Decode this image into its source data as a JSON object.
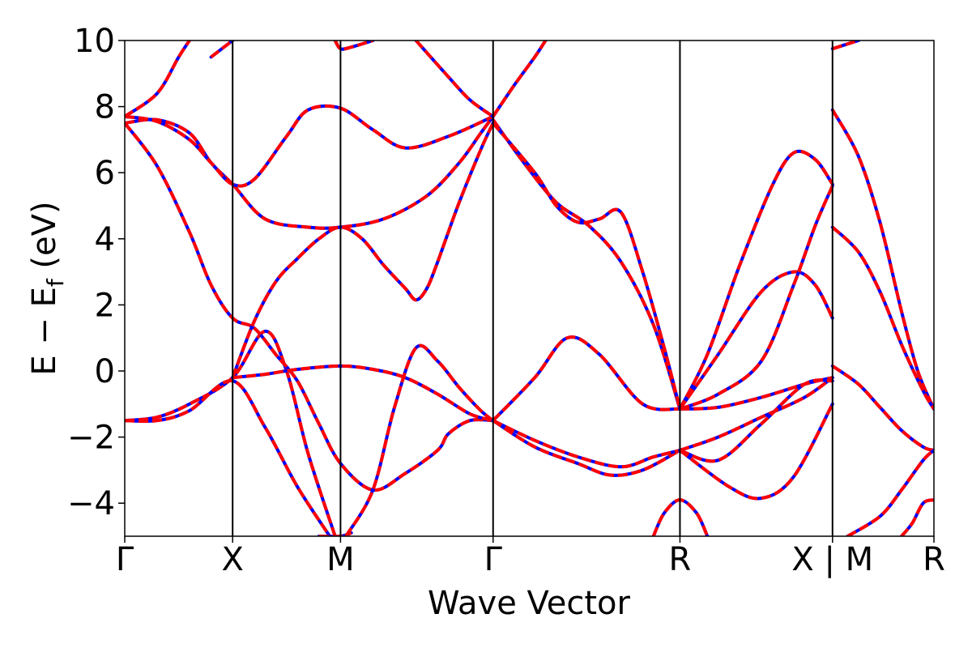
{
  "chart_data": {
    "type": "line",
    "title": "",
    "xlabel": "Wave Vector",
    "ylabel": "E − E_f (eV)",
    "ylabel_parts": {
      "main": "E − E",
      "sub": "f",
      "unit": " (eV)"
    },
    "ylim": [
      -5,
      10
    ],
    "yticks": [
      -4,
      -2,
      0,
      2,
      4,
      6,
      8,
      10
    ],
    "ytick_labels": [
      "−4",
      "−2",
      "0",
      "2",
      "4",
      "6",
      "8",
      "10"
    ],
    "xlim": [
      0,
      7.5
    ],
    "high_symmetry_points": [
      {
        "label": "Γ",
        "x": 0
      },
      {
        "label": "X",
        "x": 1.0
      },
      {
        "label": "M",
        "x": 2.0
      },
      {
        "label": "Γ",
        "x": 3.414
      },
      {
        "label": "R",
        "x": 5.146
      },
      {
        "label": "X | M",
        "x": 6.56
      },
      {
        "label": "R",
        "x": 7.5
      }
    ],
    "grid": false,
    "legend": "none",
    "colors": {
      "band_solid": "#0000ff",
      "band_dashed": "#ff0000",
      "kline": "#000000"
    },
    "series": [
      {
        "points": [
          [
            0,
            -1.5
          ],
          [
            0.3,
            -1.4
          ],
          [
            0.6,
            -1.0
          ],
          [
            1.0,
            -0.2
          ],
          [
            1.3,
            1.2
          ],
          [
            1.5,
            0.0
          ],
          [
            1.7,
            -2.5
          ],
          [
            1.95,
            -5.0
          ]
        ]
      },
      {
        "points": [
          [
            0,
            -1.5
          ],
          [
            0.3,
            -1.5
          ],
          [
            0.6,
            -1.2
          ],
          [
            1.0,
            -0.3
          ],
          [
            1.3,
            -1.7
          ],
          [
            1.6,
            -3.5
          ],
          [
            1.9,
            -5.0
          ]
        ]
      },
      {
        "points": [
          [
            0,
            7.5
          ],
          [
            0.3,
            6.2
          ],
          [
            0.6,
            4.2
          ],
          [
            0.8,
            2.6
          ],
          [
            1.0,
            1.6
          ],
          [
            1.2,
            1.3
          ],
          [
            1.4,
            0.5
          ],
          [
            1.6,
            -0.3
          ],
          [
            1.8,
            -1.6
          ],
          [
            2.0,
            -2.8
          ],
          [
            2.3,
            -3.6
          ],
          [
            2.6,
            -3.1
          ],
          [
            2.9,
            -2.4
          ],
          [
            3.0,
            -1.9
          ],
          [
            3.2,
            -1.5
          ],
          [
            3.414,
            -1.5
          ]
        ]
      },
      {
        "points": [
          [
            0,
            7.5
          ],
          [
            0.3,
            7.6
          ],
          [
            0.6,
            7.2
          ],
          [
            0.8,
            6.3
          ],
          [
            1.0,
            5.65
          ],
          [
            1.3,
            4.6
          ],
          [
            1.7,
            4.35
          ],
          [
            2.0,
            4.35
          ],
          [
            2.4,
            4.6
          ],
          [
            2.8,
            5.3
          ],
          [
            3.1,
            6.3
          ],
          [
            3.3,
            7.2
          ],
          [
            3.414,
            7.7
          ]
        ]
      },
      {
        "points": [
          [
            0,
            7.7
          ],
          [
            0.3,
            7.55
          ],
          [
            0.6,
            7.0
          ],
          [
            0.8,
            6.3
          ],
          [
            1.0,
            5.65
          ],
          [
            1.2,
            5.8
          ],
          [
            1.5,
            7.1
          ],
          [
            1.7,
            7.9
          ],
          [
            2.0,
            7.95
          ],
          [
            2.3,
            7.3
          ],
          [
            2.6,
            6.75
          ],
          [
            3.0,
            7.1
          ],
          [
            3.414,
            7.7
          ]
        ]
      },
      {
        "points": [
          [
            0,
            7.7
          ],
          [
            0.3,
            8.4
          ],
          [
            0.5,
            9.5
          ],
          [
            0.6,
            10.0
          ]
        ]
      },
      {
        "points": [
          [
            0.8,
            9.5
          ],
          [
            1.0,
            10.0
          ]
        ]
      },
      {
        "points": [
          [
            1.0,
            -0.2
          ],
          [
            1.2,
            1.5
          ],
          [
            1.4,
            2.7
          ],
          [
            1.6,
            3.4
          ],
          [
            1.8,
            4.0
          ],
          [
            2.0,
            4.35
          ],
          [
            2.2,
            4.0
          ],
          [
            2.4,
            3.2
          ],
          [
            2.6,
            2.5
          ],
          [
            2.7,
            2.15
          ],
          [
            2.8,
            2.5
          ],
          [
            2.9,
            3.3
          ],
          [
            3.1,
            5.1
          ],
          [
            3.3,
            6.7
          ],
          [
            3.414,
            7.5
          ]
        ]
      },
      {
        "points": [
          [
            1.0,
            -0.2
          ],
          [
            1.3,
            -0.1
          ],
          [
            1.6,
            0.05
          ],
          [
            2.0,
            0.15
          ],
          [
            2.3,
            0.05
          ],
          [
            2.6,
            -0.2
          ],
          [
            2.9,
            -0.7
          ],
          [
            3.2,
            -1.3
          ],
          [
            3.414,
            -1.5
          ]
        ]
      },
      {
        "points": [
          [
            1.8,
            -5.0
          ],
          [
            2.0,
            -5.0
          ],
          [
            2.1,
            -4.9
          ]
        ]
      },
      {
        "points": [
          [
            2.05,
            -5.0
          ],
          [
            2.3,
            -3.6
          ],
          [
            2.5,
            -1.1
          ],
          [
            2.7,
            0.7
          ],
          [
            2.9,
            0.3
          ],
          [
            3.1,
            -0.5
          ],
          [
            3.3,
            -1.2
          ],
          [
            3.414,
            -1.5
          ]
        ]
      },
      {
        "points": [
          [
            1.95,
            10.0
          ],
          [
            2.0,
            9.75
          ],
          [
            2.1,
            9.8
          ],
          [
            2.3,
            10.0
          ]
        ]
      },
      {
        "points": [
          [
            2.7,
            10.0
          ],
          [
            3.0,
            8.9
          ],
          [
            3.2,
            8.2
          ],
          [
            3.414,
            7.7
          ]
        ]
      },
      {
        "points": [
          [
            3.414,
            7.7
          ],
          [
            3.6,
            8.6
          ],
          [
            3.8,
            9.5
          ],
          [
            3.9,
            10.0
          ]
        ]
      },
      {
        "points": [
          [
            3.414,
            7.6
          ],
          [
            3.7,
            6.3
          ],
          [
            4.0,
            5.1
          ],
          [
            4.3,
            4.4
          ],
          [
            4.6,
            3.3
          ],
          [
            4.9,
            1.4
          ],
          [
            5.146,
            -1.15
          ]
        ]
      },
      {
        "points": [
          [
            3.414,
            7.5
          ],
          [
            3.8,
            6.0
          ],
          [
            4.0,
            5.0
          ],
          [
            4.2,
            4.5
          ],
          [
            4.4,
            4.6
          ],
          [
            4.6,
            4.8
          ],
          [
            4.8,
            3.0
          ],
          [
            5.0,
            0.7
          ],
          [
            5.146,
            -1.15
          ]
        ]
      },
      {
        "points": [
          [
            3.414,
            -1.5
          ],
          [
            3.8,
            -0.2
          ],
          [
            4.1,
            1.0
          ],
          [
            4.4,
            0.5
          ],
          [
            4.8,
            -1.0
          ],
          [
            5.146,
            -1.15
          ]
        ]
      },
      {
        "points": [
          [
            3.414,
            -1.5
          ],
          [
            3.8,
            -2.3
          ],
          [
            4.2,
            -2.8
          ],
          [
            4.5,
            -3.15
          ],
          [
            4.8,
            -3.0
          ],
          [
            5.146,
            -2.4
          ]
        ]
      },
      {
        "points": [
          [
            3.414,
            -1.5
          ],
          [
            3.8,
            -2.1
          ],
          [
            4.2,
            -2.6
          ],
          [
            4.6,
            -2.9
          ],
          [
            4.9,
            -2.6
          ],
          [
            5.146,
            -2.4
          ]
        ]
      },
      {
        "points": [
          [
            4.9,
            -5.0
          ],
          [
            5.0,
            -4.3
          ],
          [
            5.146,
            -3.9
          ],
          [
            5.3,
            -4.3
          ],
          [
            5.4,
            -5.0
          ]
        ]
      },
      {
        "points": [
          [
            5.146,
            -1.15
          ],
          [
            5.4,
            0.5
          ],
          [
            5.7,
            3.2
          ],
          [
            6.0,
            5.6
          ],
          [
            6.2,
            6.6
          ],
          [
            6.4,
            6.4
          ],
          [
            6.56,
            5.65
          ]
        ]
      },
      {
        "points": [
          [
            5.146,
            -1.15
          ],
          [
            5.5,
            0.5
          ],
          [
            5.9,
            2.4
          ],
          [
            6.2,
            3.0
          ],
          [
            6.4,
            2.6
          ],
          [
            6.56,
            1.6
          ]
        ]
      },
      {
        "points": [
          [
            5.146,
            -1.15
          ],
          [
            5.5,
            -0.7
          ],
          [
            5.9,
            0.3
          ],
          [
            6.2,
            2.6
          ],
          [
            6.4,
            4.4
          ],
          [
            6.56,
            5.6
          ]
        ]
      },
      {
        "points": [
          [
            5.146,
            -1.15
          ],
          [
            5.5,
            -1.1
          ],
          [
            5.9,
            -0.8
          ],
          [
            6.3,
            -0.4
          ],
          [
            6.56,
            -0.2
          ]
        ]
      },
      {
        "points": [
          [
            5.146,
            -2.4
          ],
          [
            5.5,
            -2.0
          ],
          [
            5.9,
            -1.4
          ],
          [
            6.3,
            -0.8
          ],
          [
            6.56,
            -0.2
          ]
        ]
      },
      {
        "points": [
          [
            5.146,
            -2.4
          ],
          [
            5.5,
            -2.7
          ],
          [
            5.9,
            -1.6
          ],
          [
            6.3,
            -0.4
          ],
          [
            6.56,
            -0.3
          ]
        ]
      },
      {
        "points": [
          [
            5.146,
            -2.4
          ],
          [
            5.6,
            -3.5
          ],
          [
            5.9,
            -3.85
          ],
          [
            6.2,
            -3.2
          ],
          [
            6.56,
            -1.0
          ]
        ]
      },
      {
        "points": [
          [
            6.56,
            7.9
          ],
          [
            6.8,
            6.5
          ],
          [
            7.0,
            4.5
          ],
          [
            7.2,
            1.8
          ],
          [
            7.35,
            0.0
          ],
          [
            7.5,
            -1.15
          ]
        ]
      },
      {
        "points": [
          [
            6.56,
            4.35
          ],
          [
            6.8,
            3.6
          ],
          [
            7.0,
            2.4
          ],
          [
            7.2,
            0.8
          ],
          [
            7.4,
            -0.6
          ],
          [
            7.5,
            -1.15
          ]
        ]
      },
      {
        "points": [
          [
            6.56,
            0.15
          ],
          [
            6.8,
            -0.4
          ],
          [
            7.0,
            -1.1
          ],
          [
            7.2,
            -1.8
          ],
          [
            7.4,
            -2.3
          ],
          [
            7.5,
            -2.4
          ]
        ]
      },
      {
        "points": [
          [
            6.56,
            9.75
          ],
          [
            6.8,
            10.0
          ]
        ]
      },
      {
        "points": [
          [
            6.7,
            -5.0
          ],
          [
            7.0,
            -4.4
          ],
          [
            7.2,
            -3.6
          ],
          [
            7.4,
            -2.7
          ],
          [
            7.5,
            -2.4
          ]
        ]
      },
      {
        "points": [
          [
            7.2,
            -5.0
          ],
          [
            7.3,
            -4.6
          ],
          [
            7.4,
            -4.0
          ],
          [
            7.5,
            -3.9
          ]
        ]
      }
    ]
  }
}
